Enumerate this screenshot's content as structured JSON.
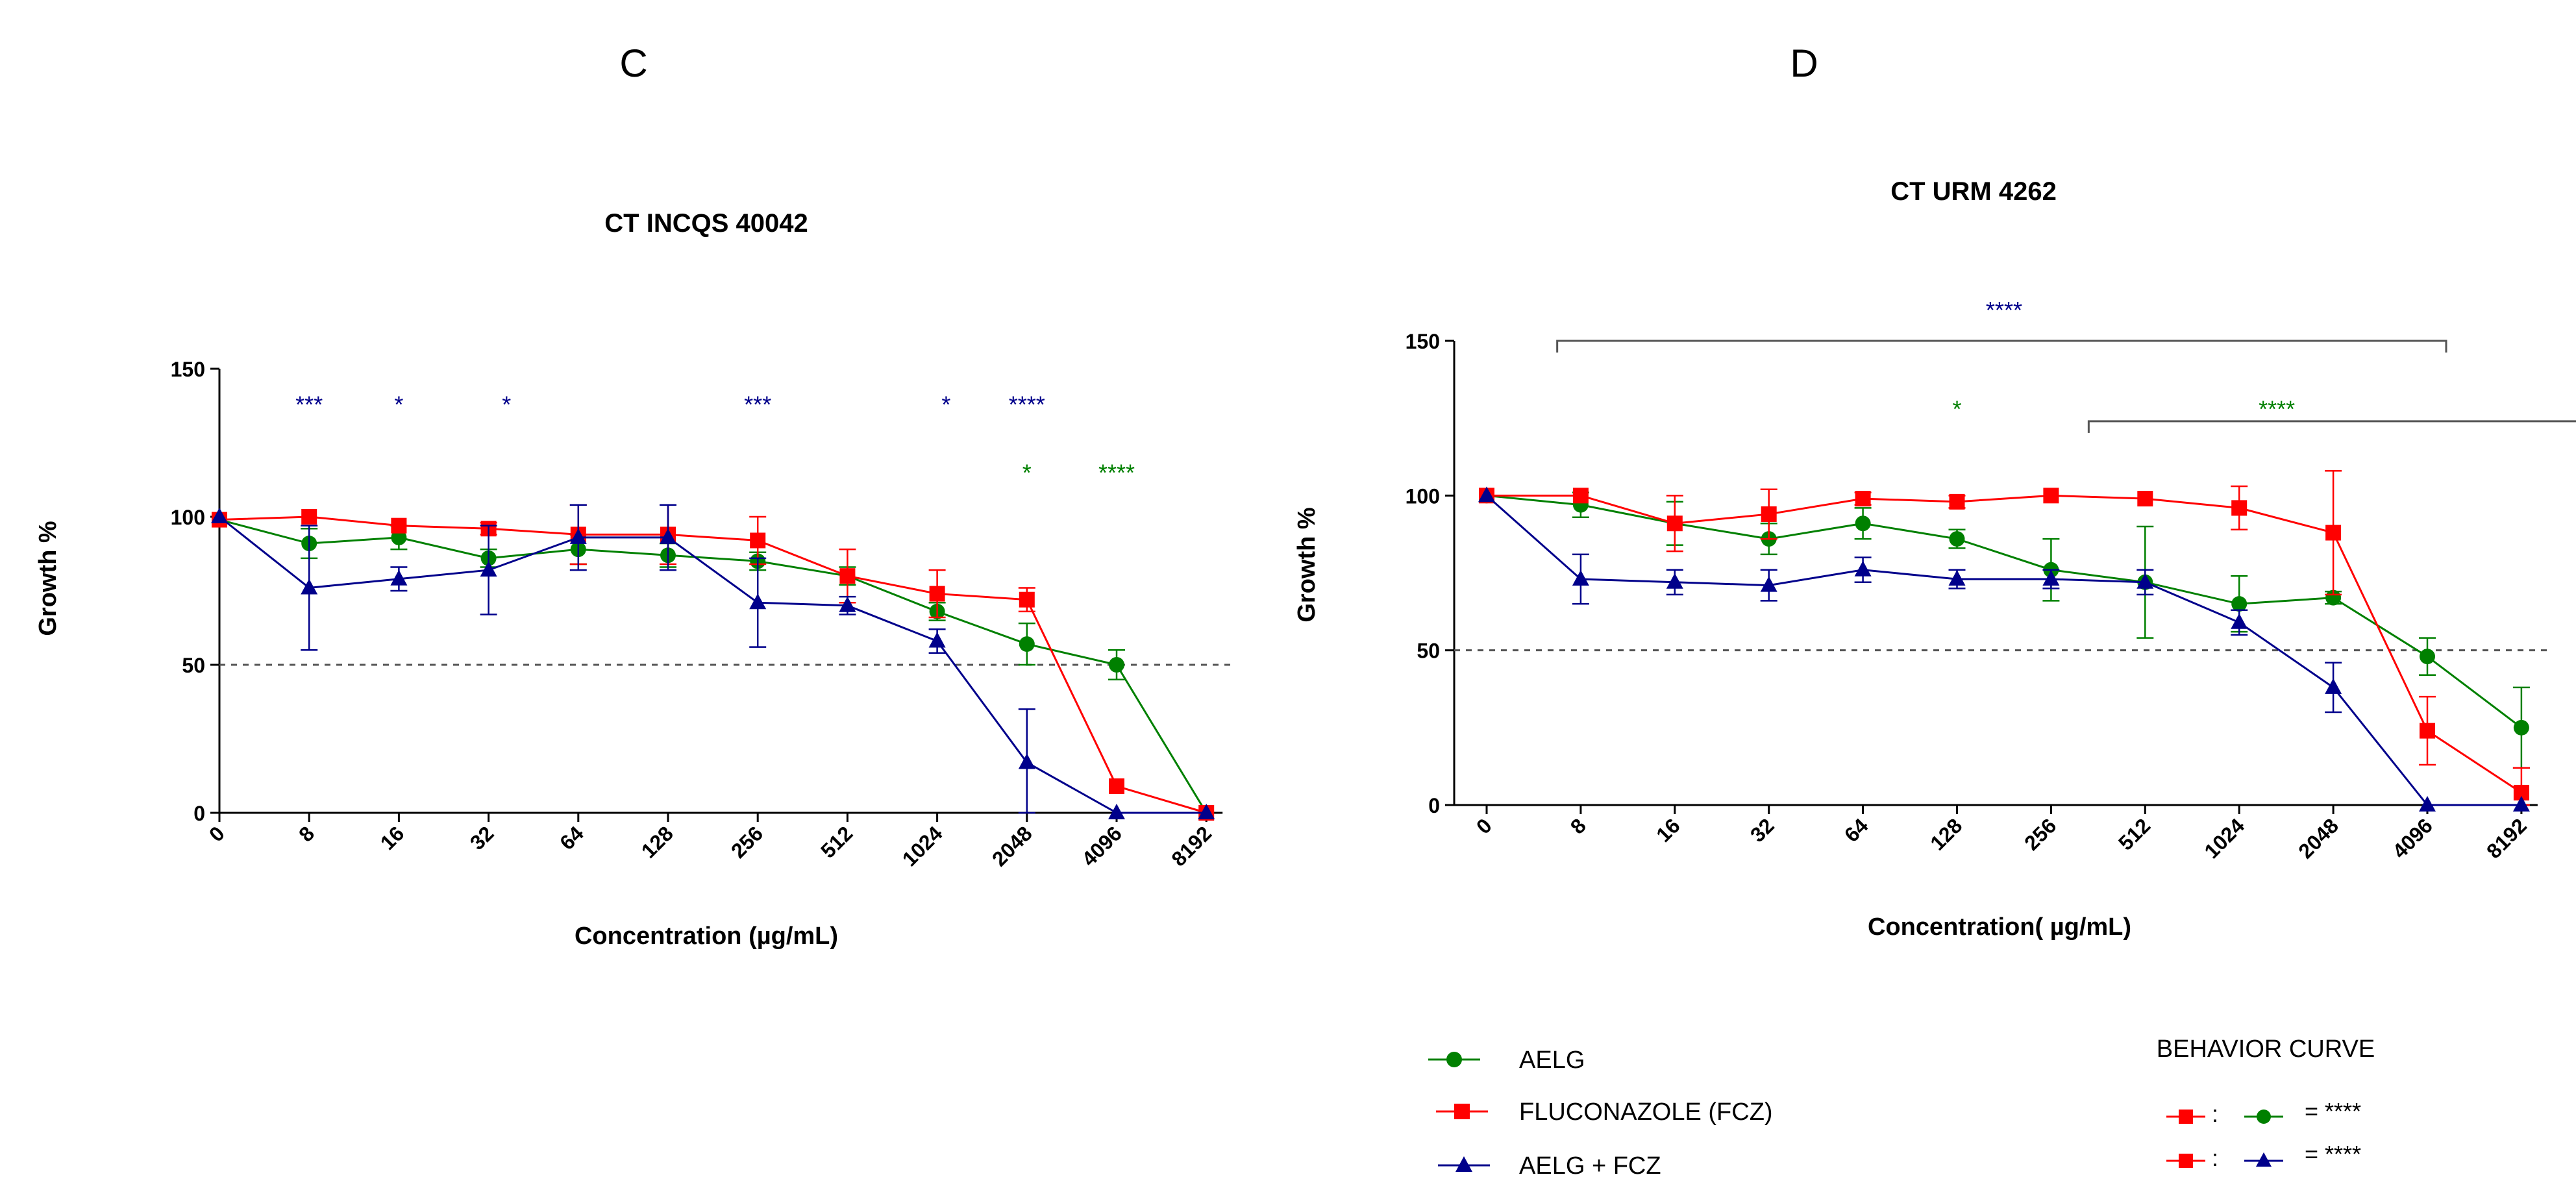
{
  "colors": {
    "AELG": "#008000",
    "FLUCONAZOLE (FCZ)": "#ff0000",
    "AELG + FCZ": "#00008b",
    "axis": "#000000",
    "threshold": "#555555",
    "bracket": "#555555"
  },
  "legend": {
    "items": [
      {
        "label": "AELG",
        "series": "AELG",
        "marker": "circle"
      },
      {
        "label": "FLUCONAZOLE (FCZ)",
        "series": "FLUCONAZOLE (FCZ)",
        "marker": "square"
      },
      {
        "label": "AELG + FCZ",
        "series": "AELG + FCZ",
        "marker": "triangle"
      }
    ]
  },
  "behavior_curve": {
    "title": "BEHAVIOR CURVE",
    "rows": [
      {
        "a": "FLUCONAZOLE (FCZ)",
        "b": "AELG",
        "result": "= ****"
      },
      {
        "a": "FLUCONAZOLE (FCZ)",
        "b": "AELG + FCZ",
        "result": "= ****"
      }
    ]
  },
  "chart_data": [
    {
      "panel": "C",
      "type": "line",
      "title": "CT INCQS 40042",
      "xlabel": "Concentration (µg/mL)",
      "ylabel": "Growth %",
      "categories": [
        "0",
        "8",
        "16",
        "32",
        "64",
        "128",
        "256",
        "512",
        "1024",
        "2048",
        "4096",
        "8192"
      ],
      "ylim": [
        0,
        150
      ],
      "yticks": [
        0,
        50,
        100,
        150
      ],
      "threshold": 50,
      "series": [
        {
          "name": "AELG",
          "marker": "circle",
          "values": [
            99,
            91,
            93,
            86,
            89,
            87,
            85,
            80,
            68,
            57,
            50,
            0
          ],
          "errors": [
            1,
            5,
            4,
            3,
            5,
            4,
            3,
            3,
            3,
            7,
            5,
            1
          ]
        },
        {
          "name": "FLUCONAZOLE (FCZ)",
          "marker": "square",
          "values": [
            99,
            100,
            97,
            96,
            94,
            94,
            92,
            80,
            74,
            72,
            9,
            0
          ],
          "errors": [
            1,
            1,
            1,
            2,
            10,
            10,
            8,
            9,
            8,
            4,
            1,
            1
          ]
        },
        {
          "name": "AELG + FCZ",
          "marker": "triangle",
          "values": [
            100,
            76,
            79,
            82,
            93,
            93,
            71,
            70,
            58,
            17,
            0,
            0
          ],
          "errors": [
            1,
            21,
            4,
            15,
            11,
            11,
            15,
            3,
            4,
            18,
            1,
            1
          ]
        }
      ],
      "significance": [
        {
          "text": "***",
          "at": 1,
          "y": 140,
          "series": "AELG + FCZ"
        },
        {
          "text": "*",
          "at": 2,
          "y": 140,
          "series": "AELG + FCZ"
        },
        {
          "text": "*",
          "at": 3.2,
          "y": 140,
          "series": "AELG + FCZ"
        },
        {
          "text": "***",
          "at": 6,
          "y": 140,
          "series": "AELG + FCZ"
        },
        {
          "text": "*",
          "at": 8.1,
          "y": 140,
          "series": "AELG + FCZ"
        },
        {
          "text": "****",
          "at": 9,
          "y": 140,
          "series": "AELG + FCZ"
        },
        {
          "text": "*",
          "at": 9,
          "y": 117,
          "series": "AELG"
        },
        {
          "text": "****",
          "at": 10,
          "y": 117,
          "series": "AELG"
        }
      ],
      "brackets": []
    },
    {
      "panel": "D",
      "type": "line",
      "title": "CT URM 4262",
      "xlabel": "Concentration( µg/mL)",
      "ylabel": "Growth %",
      "categories": [
        "0",
        "8",
        "16",
        "32",
        "64",
        "128",
        "256",
        "512",
        "1024",
        "2048",
        "4096",
        "8192"
      ],
      "ylim": [
        0,
        150
      ],
      "yticks": [
        0,
        50,
        100,
        150
      ],
      "threshold": 50,
      "series": [
        {
          "name": "AELG",
          "marker": "circle",
          "values": [
            100,
            97,
            91,
            86,
            91,
            86,
            76,
            72,
            65,
            67,
            48,
            25
          ],
          "errors": [
            1,
            4,
            7,
            5,
            5,
            3,
            10,
            18,
            9,
            2,
            6,
            13
          ]
        },
        {
          "name": "FLUCONAZOLE (FCZ)",
          "marker": "square",
          "values": [
            100,
            100,
            91,
            94,
            99,
            98,
            100,
            99,
            96,
            88,
            24,
            4
          ],
          "errors": [
            1,
            1,
            9,
            8,
            2,
            2,
            1,
            1,
            7,
            20,
            11,
            8
          ]
        },
        {
          "name": "AELG + FCZ",
          "marker": "triangle",
          "values": [
            100,
            73,
            72,
            71,
            76,
            73,
            73,
            72,
            59,
            38,
            0,
            0
          ],
          "errors": [
            1,
            8,
            4,
            5,
            4,
            3,
            3,
            4,
            4,
            8,
            1,
            1
          ]
        }
      ],
      "significance": [
        {
          "text": "****",
          "at": 5.5,
          "y": 162,
          "series": "AELG + FCZ"
        },
        {
          "text": "*",
          "at": 5,
          "y": 130,
          "series": "AELG"
        },
        {
          "text": "****",
          "at": 8.4,
          "y": 130,
          "series": "AELG"
        }
      ],
      "brackets": [
        {
          "from": 0.75,
          "to": 10.2,
          "y": 150,
          "series": "AELG + FCZ"
        },
        {
          "from": 6.4,
          "to": 11.8,
          "y": 124,
          "series": "AELG"
        }
      ]
    }
  ]
}
